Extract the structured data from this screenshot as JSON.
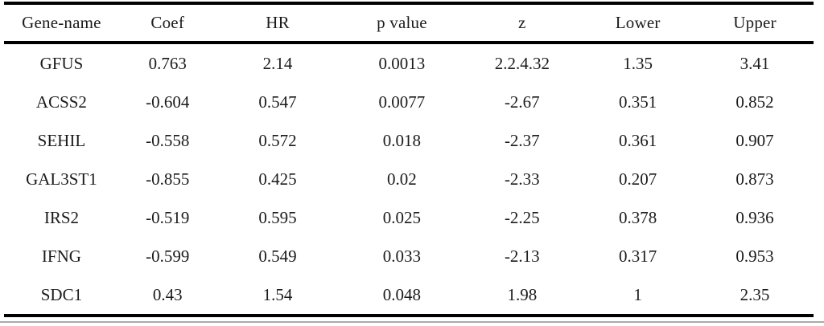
{
  "table": {
    "name": "cox-regression-gene-table",
    "columns": [
      "Gene-name",
      "Coef",
      "HR",
      "p value",
      "z",
      "Lower",
      "Upper"
    ],
    "column_widths_pct": [
      14.2,
      12.0,
      15.2,
      15.5,
      14.2,
      14.4,
      14.5
    ],
    "rows": [
      [
        "GFUS",
        "0.763",
        "2.14",
        "0.0013",
        "2.2.4.32",
        "1.35",
        "3.41"
      ],
      [
        "ACSS2",
        "-0.604",
        "0.547",
        "0.0077",
        "-2.67",
        "0.351",
        "0.852"
      ],
      [
        "SEHIL",
        "-0.558",
        "0.572",
        "0.018",
        "-2.37",
        "0.361",
        "0.907"
      ],
      [
        "GAL3ST1",
        "-0.855",
        "0.425",
        "0.02",
        "-2.33",
        "0.207",
        "0.873"
      ],
      [
        "IRS2",
        "-0.519",
        "0.595",
        "0.025",
        "-2.25",
        "0.378",
        "0.936"
      ],
      [
        "IFNG",
        "-0.599",
        "0.549",
        "0.033",
        "-2.13",
        "0.317",
        "0.953"
      ],
      [
        "SDC1",
        "0.43",
        "1.54",
        "0.048",
        "1.98",
        "1",
        "2.35"
      ]
    ]
  },
  "colors": {
    "background": "#ffffff",
    "text": "#1b1b1b",
    "thick_rule": "#000000",
    "thin_bottom_rule": "#aaaaaa"
  }
}
